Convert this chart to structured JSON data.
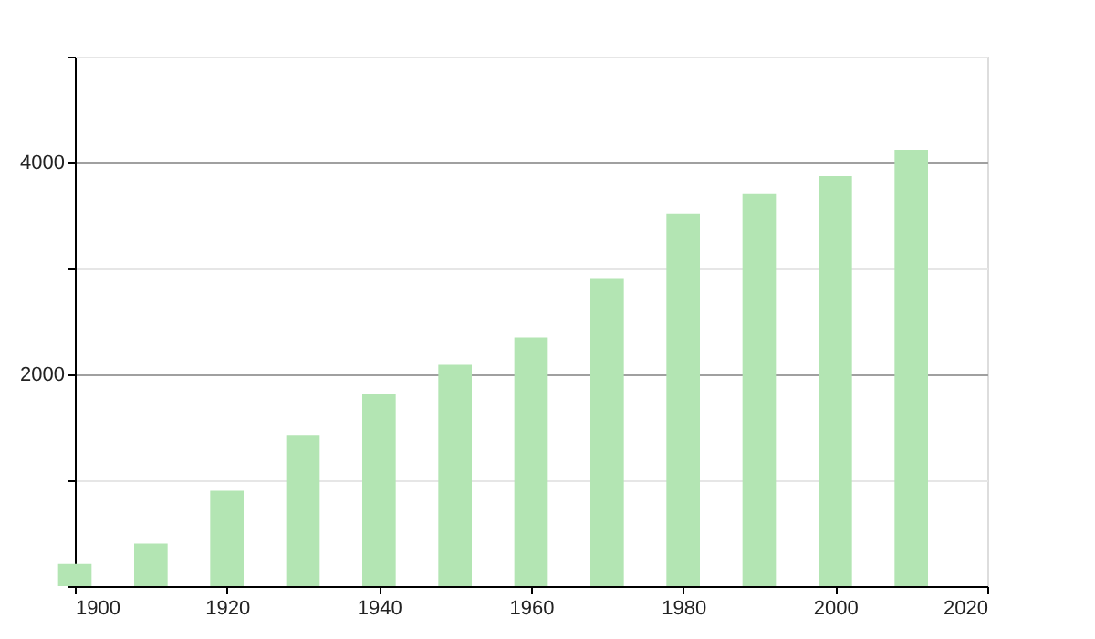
{
  "chart_data": {
    "type": "bar",
    "x": [
      1900,
      1910,
      1920,
      1930,
      1940,
      1950,
      1960,
      1970,
      1980,
      1990,
      2000,
      2010
    ],
    "values": [
      210,
      400,
      900,
      1420,
      1810,
      2090,
      2350,
      2900,
      3520,
      3710,
      3870,
      4120
    ],
    "color": "#b3e5b3",
    "xlim": [
      1900,
      2020
    ],
    "xticks": [
      1900,
      1920,
      1940,
      1960,
      1980,
      2000,
      2020
    ],
    "ylim": [
      0,
      5000
    ],
    "yticks": [
      {
        "value": 0,
        "label": null
      },
      {
        "value": 1000,
        "label": null
      },
      2000,
      {
        "value": 3000,
        "label": null
      },
      4000,
      {
        "value": 5000,
        "label": null
      }
    ],
    "grid": "y"
  }
}
